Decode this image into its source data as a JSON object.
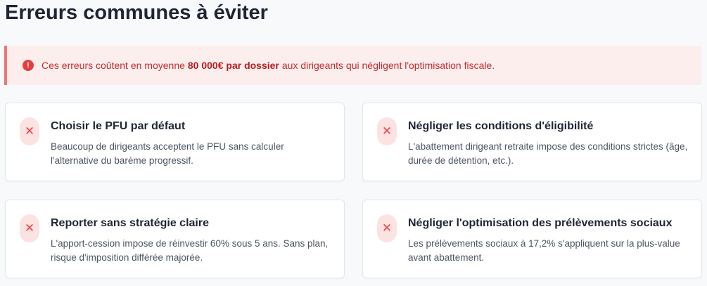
{
  "title": "Erreurs communes à éviter",
  "alert": {
    "icon": "exclamation-circle-icon",
    "before": "Ces erreurs coûtent en moyenne",
    "bold": "80 000€ par dossier",
    "after": "aux dirigeants qui négligent l'optimisation fiscale."
  },
  "cards": [
    {
      "icon": "x-icon",
      "title": "Choisir le PFU par défaut",
      "desc": "Beaucoup de dirigeants acceptent le PFU sans calculer l'alternative du barème progressif."
    },
    {
      "icon": "x-icon",
      "title": "Négliger les conditions d'éligibilité",
      "desc": "L'abattement dirigeant retraite impose des conditions strictes (âge, durée de détention, etc.)."
    },
    {
      "icon": "x-icon",
      "title": "Reporter sans stratégie claire",
      "desc": "L'apport-cession impose de réinvestir 60% sous 5 ans. Sans plan, risque d'imposition différée majorée."
    },
    {
      "icon": "x-icon",
      "title": "Négliger l'optimisation des prélèvements sociaux",
      "desc": "Les prélèvements sociaux à 17,2% s'appliquent sur la plus-value avant abattement."
    }
  ]
}
